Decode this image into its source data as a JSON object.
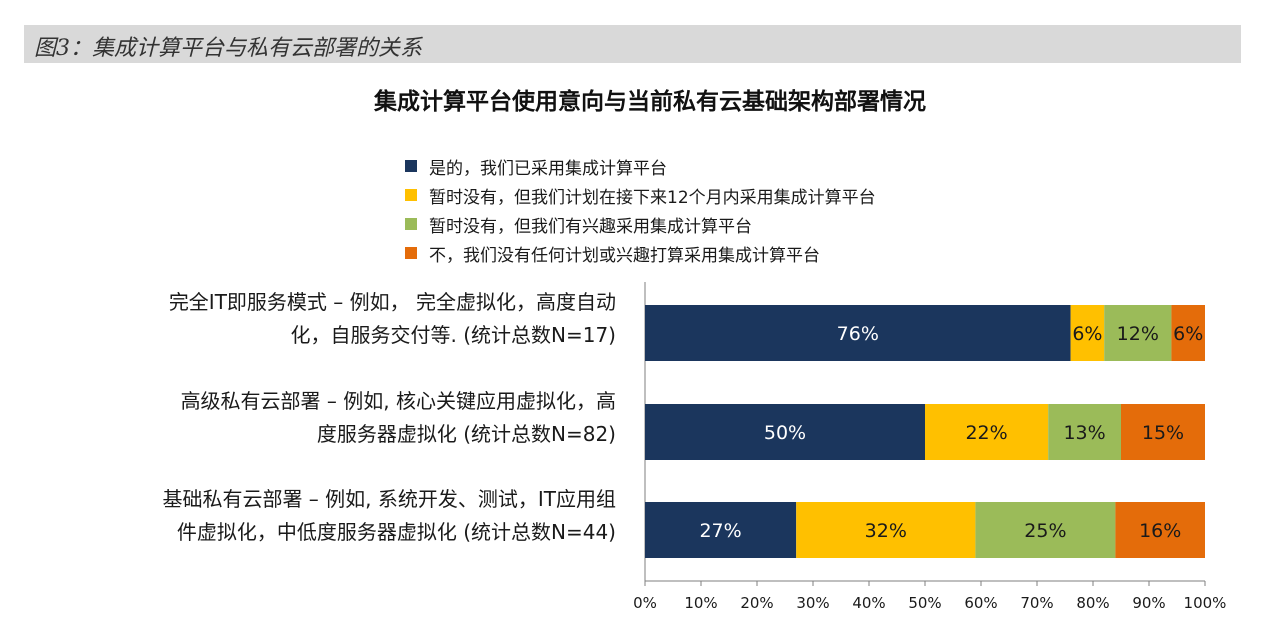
{
  "figure_caption": "图3：集成计算平台与私有云部署的关系",
  "colors": {
    "series": [
      "#1b365d",
      "#ffc000",
      "#9bbb59",
      "#e46c0a"
    ],
    "header_bg": "#d9d9d9",
    "axis": "#7f7f7f"
  },
  "chart_data": {
    "type": "bar",
    "stacked": true,
    "orientation": "horizontal",
    "title": "集成计算平台使用意向与当前私有云基础架构部署情况",
    "legend_position": "top",
    "categories": [
      "完全IT即服务模式 – 例如， 完全虚拟化，高度自动化，自服务交付等. (统计总数N=17)",
      "高级私有云部署 – 例如, 核心关键应用虚拟化，高度服务器虚拟化 (统计总数N=82)",
      "基础私有云部署 – 例如, 系统开发、测试，IT应用组件虚拟化，中低度服务器虚拟化 (统计总数N=44)"
    ],
    "category_lines": [
      [
        "完全IT即服务模式 – 例如， 完全虚拟化，高度自动",
        "化，自服务交付等. (统计总数N=17)"
      ],
      [
        "高级私有云部署 – 例如, 核心关键应用虚拟化，高",
        "度服务器虚拟化 (统计总数N=82)"
      ],
      [
        "基础私有云部署 – 例如, 系统开发、测试，IT应用组",
        "件虚拟化，中低度服务器虚拟化 (统计总数N=44)"
      ]
    ],
    "series": [
      {
        "name": "是的，我们已采用集成计算平台",
        "values": [
          76,
          50,
          27
        ]
      },
      {
        "name": "暂时没有，但我们计划在接下来12个月内采用集成计算平台",
        "values": [
          6,
          22,
          32
        ]
      },
      {
        "name": "暂时没有，但我们有兴趣采用集成计算平台",
        "values": [
          12,
          13,
          25
        ]
      },
      {
        "name": "不，我们没有任何计划或兴趣打算采用集成计算平台",
        "values": [
          6,
          15,
          16
        ]
      }
    ],
    "data_labels": [
      [
        "76%",
        "6%",
        "12%",
        "6%"
      ],
      [
        "50%",
        "22%",
        "13%",
        "15%"
      ],
      [
        "27%",
        "32%",
        "25%",
        "16%"
      ]
    ],
    "xlim": [
      0,
      100
    ],
    "xticks": [
      "0%",
      "10%",
      "20%",
      "30%",
      "40%",
      "50%",
      "60%",
      "70%",
      "80%",
      "90%",
      "100%"
    ]
  }
}
